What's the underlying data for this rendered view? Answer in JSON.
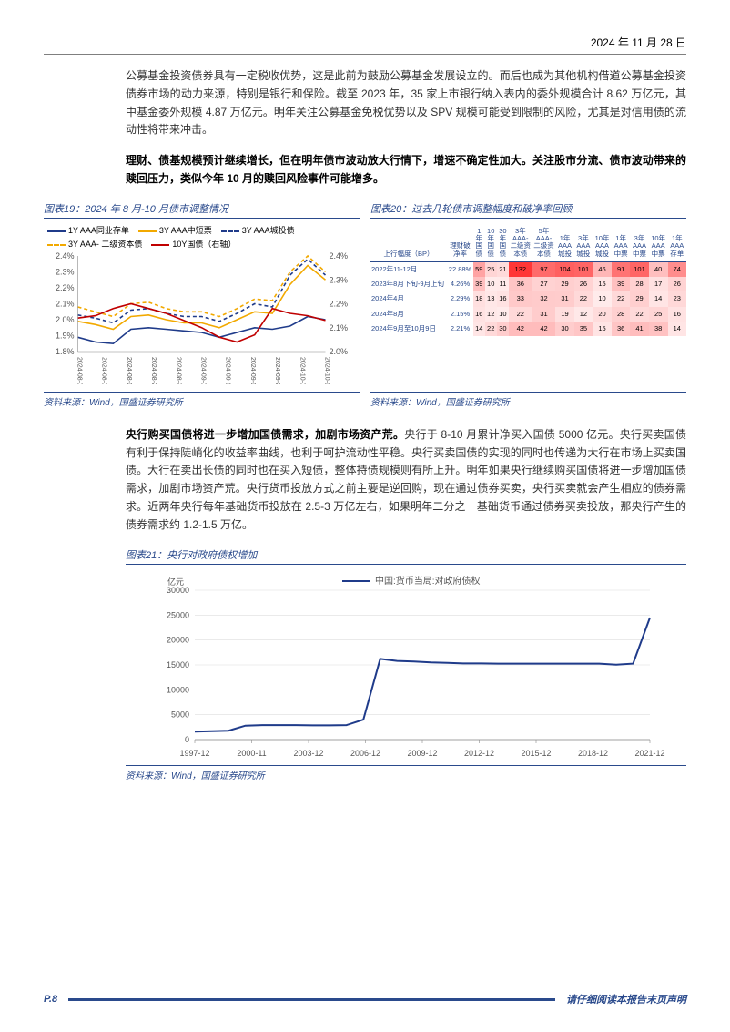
{
  "header": {
    "date": "2024 年 11 月 28 日"
  },
  "para1": "公募基金投资债券具有一定税收优势，这是此前为鼓励公募基金发展设立的。而后也成为其他机构借道公募基金投资债券市场的动力来源，特别是银行和保险。截至 2023 年，35 家上市银行纳入表内的委外规模合计 8.62 万亿元，其中基金委外规模 4.87 万亿元。明年关注公募基金免税优势以及 SPV 规模可能受到限制的风险，尤其是对信用债的流动性将带来冲击。",
  "para2": "理财、债基规模预计继续增长，但在明年债市波动放大行情下，增速不确定性加大。关注股市分流、债市波动带来的赎回压力，类似今年 10 月的赎回风险事件可能增多。",
  "chart19": {
    "title": "图表19：2024 年 8 月-10 月债市调整情况",
    "legend": [
      {
        "label": "1Y AAA同业存单",
        "color": "#1f3b8a",
        "dash": false
      },
      {
        "label": "3Y AAA中短票",
        "color": "#f2a900",
        "dash": false
      },
      {
        "label": "3Y AAA城投债",
        "color": "#1f3b8a",
        "dash": true
      },
      {
        "label": "3Y AAA- 二级资本债",
        "color": "#f2a900",
        "dash": true
      },
      {
        "label": "10Y国债（右轴）",
        "color": "#c00000",
        "dash": false
      }
    ],
    "left_axis": {
      "min": 1.8,
      "max": 2.4,
      "ticks": [
        1.8,
        1.9,
        2.0,
        2.1,
        2.2,
        2.3,
        2.4
      ]
    },
    "right_axis": {
      "min": 2.0,
      "max": 2.4,
      "ticks": [
        2.0,
        2.1,
        2.2,
        2.3,
        2.4
      ]
    },
    "x_labels": [
      "2024-08-01",
      "2024-08-08",
      "2024-08-15",
      "2024-08-22",
      "2024-08-29",
      "2024-09-05",
      "2024-09-12",
      "2024-09-19",
      "2024-09-26",
      "2024-10-03",
      "2024-10-10"
    ],
    "series": {
      "cd1y": [
        1.89,
        1.86,
        1.85,
        1.94,
        1.95,
        1.94,
        1.93,
        1.92,
        1.89,
        1.92,
        1.95,
        1.94,
        1.96,
        2.02,
        2.0
      ],
      "mtn3y": [
        1.99,
        1.97,
        1.94,
        2.02,
        2.03,
        2.0,
        1.98,
        1.98,
        1.95,
        2.0,
        2.05,
        2.04,
        2.22,
        2.34,
        2.25
      ],
      "urban3y": [
        2.03,
        2.01,
        1.98,
        2.06,
        2.07,
        2.04,
        2.02,
        2.02,
        1.99,
        2.04,
        2.1,
        2.08,
        2.28,
        2.38,
        2.28
      ],
      "tier2": [
        2.08,
        2.05,
        2.02,
        2.1,
        2.11,
        2.07,
        2.05,
        2.05,
        2.02,
        2.07,
        2.13,
        2.12,
        2.3,
        2.4,
        2.3
      ],
      "gov10y": [
        2.14,
        2.15,
        2.18,
        2.2,
        2.18,
        2.16,
        2.13,
        2.1,
        2.06,
        2.04,
        2.07,
        2.18,
        2.16,
        2.15,
        2.13
      ]
    },
    "source": "资料来源：Wind，国盛证券研究所"
  },
  "chart20": {
    "title": "图表20：过去几轮债市调整幅度和破净率回顾",
    "columns": [
      "上行幅度（BP）",
      "理财破净率",
      "1年国债",
      "10年国债",
      "30年国债",
      "3年AAA-二级资本债",
      "5年AAA-二级资本债",
      "1年AAA城投",
      "3年AAA城投",
      "10年AAA城投",
      "1年AAA中票",
      "3年AAA中票",
      "10年AAA中票",
      "1年AAA存单"
    ],
    "rows": [
      {
        "label": "2022年11-12月",
        "net": "22.88%",
        "vals": [
          59,
          25,
          21,
          132,
          97,
          104,
          101,
          46,
          91,
          101,
          40,
          74
        ]
      },
      {
        "label": "2023年8月下旬-9月上旬",
        "net": "4.26%",
        "vals": [
          39,
          10,
          11,
          36,
          27,
          29,
          26,
          15,
          39,
          28,
          17,
          26
        ]
      },
      {
        "label": "2024年4月",
        "net": "2.29%",
        "vals": [
          18,
          13,
          16,
          33,
          32,
          31,
          22,
          10,
          22,
          29,
          14,
          23
        ]
      },
      {
        "label": "2024年8月",
        "net": "2.15%",
        "vals": [
          16,
          12,
          10,
          22,
          31,
          19,
          12,
          20,
          28,
          22,
          25,
          16
        ]
      },
      {
        "label": "2024年9月至10月9日",
        "net": "2.21%",
        "vals": [
          14,
          22,
          30,
          42,
          42,
          30,
          35,
          15,
          36,
          41,
          38,
          14
        ]
      }
    ],
    "heat_min": 10,
    "heat_max": 132,
    "source": "资料来源：Wind，国盛证券研究所"
  },
  "para3_lead": "央行购买国债将进一步增加国债需求，加剧市场资产荒。",
  "para3_rest": "央行于 8-10 月累计净买入国债 5000 亿元。央行买卖国债有利于保持陡峭化的收益率曲线，也利于呵护流动性平稳。央行买卖国债的实现的同时也传递为大行在市场上买卖国债。大行在卖出长债的同时也在买入短债，整体持债规模则有所上升。明年如果央行继续购买国债将进一步增加国债需求，加剧市场资产荒。央行货币投放方式之前主要是逆回购，现在通过债券买卖，央行买卖就会产生相应的债券需求。近两年央行每年基础货币投放在 2.5-3 万亿左右，如果明年二分之一基础货币通过债券买卖投放，那央行产生的债券需求约 1.2-1.5 万亿。",
  "chart21": {
    "title": "图表21：央行对政府债权增加",
    "legend": "中国:货币当局:对政府债权",
    "y_label": "亿元",
    "y_max": 30000,
    "y_ticks": [
      0,
      5000,
      10000,
      15000,
      20000,
      25000,
      30000
    ],
    "x_labels": [
      "1997-12",
      "2000-11",
      "2003-12",
      "2006-12",
      "2009-12",
      "2012-12",
      "2015-12",
      "2018-12",
      "2021-12"
    ],
    "series": [
      1600,
      1700,
      1800,
      2800,
      2900,
      2900,
      2900,
      2850,
      2850,
      2900,
      4000,
      16200,
      15800,
      15700,
      15500,
      15400,
      15300,
      15300,
      15250,
      15250,
      15250,
      15250,
      15250,
      15250,
      15250,
      15050,
      15250,
      24500
    ],
    "color": "#1f3b8a",
    "source": "资料来源：Wind，国盛证券研究所"
  },
  "footer": {
    "page": "P.8",
    "disclaimer": "请仔细阅读本报告末页声明"
  }
}
